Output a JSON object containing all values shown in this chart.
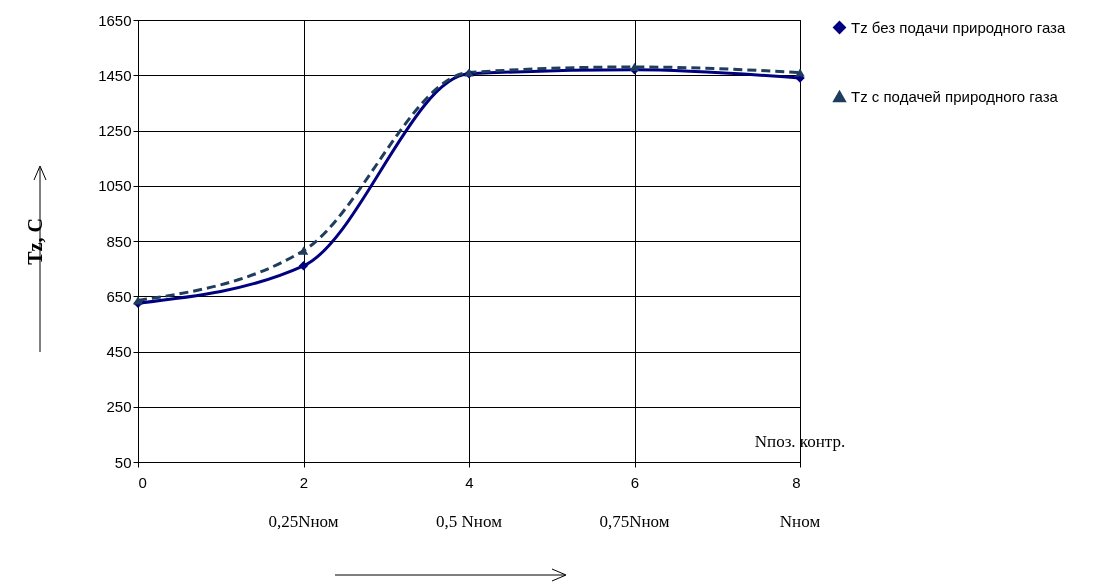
{
  "chart_data": {
    "type": "line",
    "ylabel": "Tz, C",
    "x": [
      0,
      2,
      4,
      6,
      8
    ],
    "series": [
      {
        "name": "Tz без подачи природного газа",
        "color": "#000080",
        "values": [
          625,
          760,
          1455,
          1470,
          1440
        ],
        "marker": "diamond",
        "line_style": "solid"
      },
      {
        "name": "Tz с подачей природного газа",
        "color": "#1f3d5c",
        "values": [
          635,
          815,
          1460,
          1480,
          1460
        ],
        "marker": "triangle",
        "line_style": "dashed"
      }
    ],
    "xlim": [
      0,
      8
    ],
    "xticks": [
      0,
      2,
      4,
      6,
      8
    ],
    "ylim": [
      50,
      1650
    ],
    "yticks": [
      50,
      250,
      450,
      650,
      850,
      1050,
      1250,
      1450,
      1650
    ],
    "grid": true,
    "legend": "right",
    "annotations": [
      "Nпоз. контр.",
      "0,25Nном",
      "0,5 Nном",
      "0,75Nном",
      "Nном"
    ]
  }
}
